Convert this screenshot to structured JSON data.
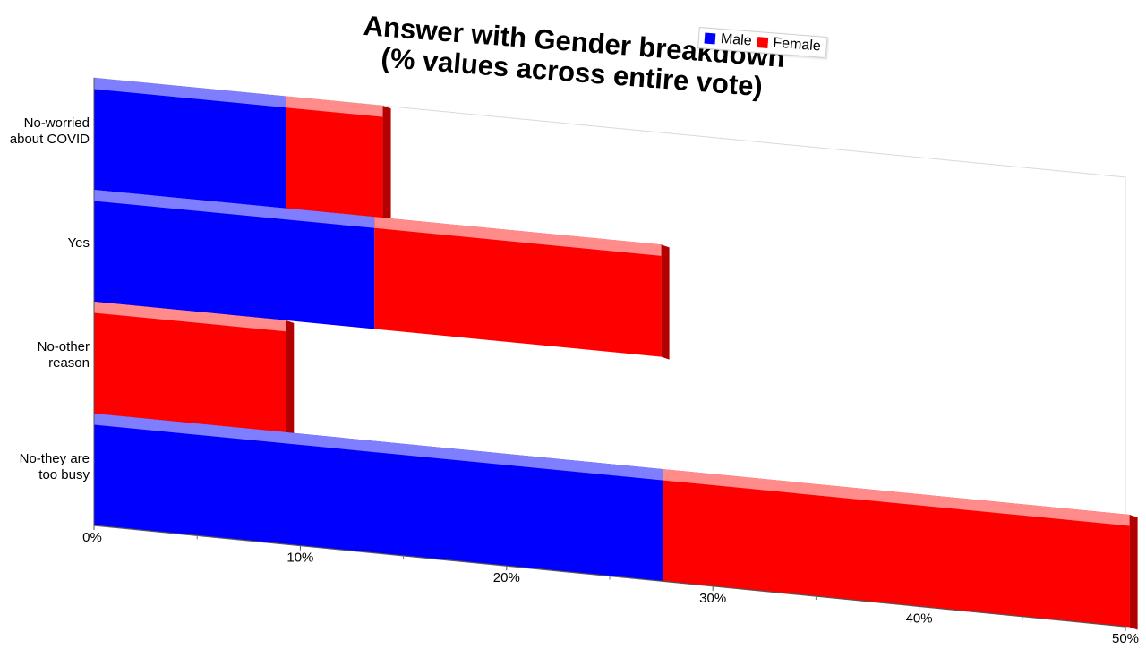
{
  "chart_data": {
    "type": "bar",
    "orientation": "horizontal",
    "stacked": true,
    "title_line1": "Answer with Gender breakdown",
    "title_line2": "(% values across entire vote)",
    "categories": [
      "No-worried\nabout COVID",
      "Yes",
      "No-other\nreason",
      "No-they are\ntoo busy"
    ],
    "series": [
      {
        "name": "Male",
        "color": "#0000ff",
        "values": [
          9.3,
          13.6,
          0,
          27.6
        ]
      },
      {
        "name": "Female",
        "color": "#ff0000",
        "values": [
          4.7,
          13.9,
          9.3,
          22.6
        ]
      }
    ],
    "xlim": [
      0,
      50
    ],
    "xticks": [
      "0%",
      "10%",
      "20%",
      "30%",
      "40%",
      "50%"
    ],
    "legend_position": "top-right"
  }
}
